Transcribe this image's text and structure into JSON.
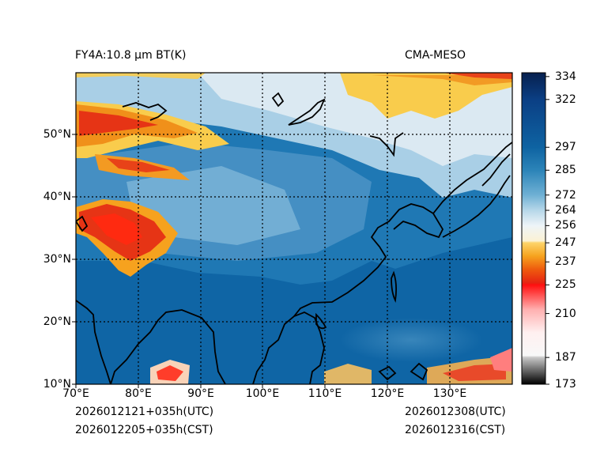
{
  "title": {
    "product": "FY4A:10.8 µm BT(K)",
    "model": "CMA-MESO"
  },
  "footer": {
    "init_utc": "2026012121+035h(UTC)",
    "init_cst": "2026012205+035h(CST)",
    "valid_utc": "2026012308(UTC)",
    "valid_cst": "2026012316(CST)"
  },
  "map": {
    "lon_range": [
      70,
      140
    ],
    "lat_range": [
      10,
      60
    ],
    "lon_ticks": [
      {
        "value": 70,
        "label": "70°E"
      },
      {
        "value": 80,
        "label": "80°E"
      },
      {
        "value": 90,
        "label": "90°E"
      },
      {
        "value": 100,
        "label": "100°E"
      },
      {
        "value": 110,
        "label": "110°E"
      },
      {
        "value": 120,
        "label": "120°E"
      },
      {
        "value": 130,
        "label": "130°E"
      }
    ],
    "lat_ticks": [
      {
        "value": 10,
        "label": "10°N"
      },
      {
        "value": 20,
        "label": "20°N"
      },
      {
        "value": 30,
        "label": "30°N"
      },
      {
        "value": 40,
        "label": "40°N"
      },
      {
        "value": 50,
        "label": "50°N"
      }
    ]
  },
  "colorbar": {
    "range": [
      173,
      336
    ],
    "ticks": [
      {
        "value": 334,
        "label": "334"
      },
      {
        "value": 322,
        "label": "322"
      },
      {
        "value": 297,
        "label": "297"
      },
      {
        "value": 285,
        "label": "285"
      },
      {
        "value": 272,
        "label": "272"
      },
      {
        "value": 264,
        "label": "264"
      },
      {
        "value": 256,
        "label": "256"
      },
      {
        "value": 247,
        "label": "247"
      },
      {
        "value": 237,
        "label": "237"
      },
      {
        "value": 225,
        "label": "225"
      },
      {
        "value": 210,
        "label": "210"
      },
      {
        "value": 187,
        "label": "187"
      },
      {
        "value": 173,
        "label": "173"
      }
    ],
    "stops": [
      {
        "value": 336,
        "color": "#07204e"
      },
      {
        "value": 322,
        "color": "#0b3f84"
      },
      {
        "value": 297,
        "color": "#0e63a2"
      },
      {
        "value": 285,
        "color": "#2c84b8"
      },
      {
        "value": 272,
        "color": "#6fb0d4"
      },
      {
        "value": 264,
        "color": "#b6d7e9"
      },
      {
        "value": 256,
        "color": "#eef4f8"
      },
      {
        "value": 248,
        "color": "#fbf2d4"
      },
      {
        "value": 247,
        "color": "#fdd46a"
      },
      {
        "value": 240,
        "color": "#f6a21e"
      },
      {
        "value": 233,
        "color": "#ee5a0e"
      },
      {
        "value": 226,
        "color": "#e62312"
      },
      {
        "value": 225,
        "color": "#ff0f0f"
      },
      {
        "value": 212,
        "color": "#ffb0b0"
      },
      {
        "value": 200,
        "color": "#fff0f0"
      },
      {
        "value": 188,
        "color": "#f8f8f8"
      },
      {
        "value": 187,
        "color": "#c8c8c8"
      },
      {
        "value": 173,
        "color": "#000000"
      }
    ]
  },
  "colors": {
    "ocean": "#0f65a5",
    "land_warm": "#1e78b3",
    "plateau": "#6aa8d0",
    "cold_north": "#dbe9f2",
    "cloud_yellow": "#f9cc4c",
    "cloud_orange": "#f0901a",
    "cloud_red": "#e63415",
    "coast": "#000000"
  }
}
